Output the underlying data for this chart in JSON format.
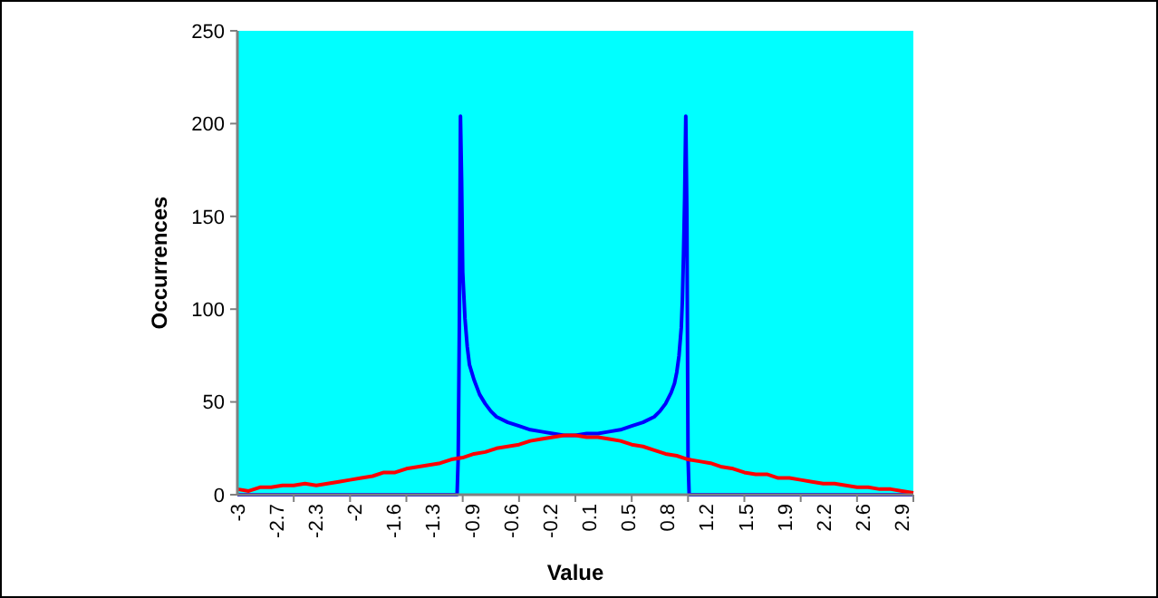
{
  "chart_data": {
    "type": "line",
    "xlabel": "Value",
    "ylabel": "Occurrences",
    "xlim": [
      -3,
      3
    ],
    "ylim": [
      0,
      250
    ],
    "yticks": [
      0,
      50,
      100,
      150,
      200,
      250
    ],
    "xticks": [
      {
        "value": -3,
        "label": "-3"
      },
      {
        "value": -2.653,
        "label": "-2.7"
      },
      {
        "value": -2.306,
        "label": "-2.3"
      },
      {
        "value": -1.959,
        "label": "-2"
      },
      {
        "value": -1.612,
        "label": "-1.6"
      },
      {
        "value": -1.265,
        "label": "-1.3"
      },
      {
        "value": -0.918,
        "label": "-0.9"
      },
      {
        "value": -0.571,
        "label": "-0.6"
      },
      {
        "value": -0.224,
        "label": "-0.2"
      },
      {
        "value": 0.123,
        "label": "0.1"
      },
      {
        "value": 0.47,
        "label": "0.5"
      },
      {
        "value": 0.817,
        "label": "0.8"
      },
      {
        "value": 1.164,
        "label": "1.2"
      },
      {
        "value": 1.511,
        "label": "1.5"
      },
      {
        "value": 1.858,
        "label": "1.9"
      },
      {
        "value": 2.205,
        "label": "2.2"
      },
      {
        "value": 2.552,
        "label": "2.6"
      },
      {
        "value": 2.9,
        "label": "2.9"
      },
      {
        "value": -2.5,
        "label": null
      },
      {
        "value": -2,
        "label": null
      },
      {
        "value": -1.5,
        "label": null
      },
      {
        "value": -1,
        "label": null
      },
      {
        "value": -0.5,
        "label": null
      },
      {
        "value": 0,
        "label": null
      },
      {
        "value": 0.5,
        "label": null
      },
      {
        "value": 1,
        "label": null
      },
      {
        "value": 1.5,
        "label": null
      },
      {
        "value": 2,
        "label": null
      },
      {
        "value": 2.5,
        "label": null
      },
      {
        "value": 3,
        "label": null
      }
    ],
    "grid": false,
    "marker": "none",
    "line_style": "solid",
    "series": [
      {
        "color": "#0000ff",
        "x": [
          -3,
          -1.05,
          -1.04,
          -1.03,
          -1.02,
          -1.01,
          -1.0,
          -0.98,
          -0.96,
          -0.94,
          -0.9,
          -0.85,
          -0.8,
          -0.75,
          -0.7,
          -0.6,
          -0.5,
          -0.4,
          -0.3,
          -0.2,
          -0.1,
          0,
          0.1,
          0.2,
          0.3,
          0.4,
          0.5,
          0.6,
          0.7,
          0.75,
          0.8,
          0.85,
          0.88,
          0.9,
          0.92,
          0.94,
          0.95,
          0.96,
          0.97,
          0.98,
          0.99,
          1.0,
          1.01,
          3
        ],
        "values": [
          0,
          0,
          20,
          90,
          204,
          170,
          120,
          95,
          80,
          70,
          62,
          54,
          49,
          45,
          42,
          39,
          37,
          35,
          34,
          33,
          32,
          32,
          33,
          33,
          34,
          35,
          37,
          39,
          42,
          45,
          49,
          55,
          60,
          66,
          75,
          90,
          105,
          130,
          160,
          204,
          150,
          20,
          0,
          0
        ]
      },
      {
        "color": "#ff0000",
        "x": [
          -3,
          -2.9,
          -2.8,
          -2.7,
          -2.6,
          -2.5,
          -2.4,
          -2.3,
          -2.2,
          -2.1,
          -2,
          -1.9,
          -1.8,
          -1.7,
          -1.6,
          -1.5,
          -1.4,
          -1.3,
          -1.2,
          -1.1,
          -1,
          -0.9,
          -0.8,
          -0.7,
          -0.6,
          -0.5,
          -0.4,
          -0.3,
          -0.2,
          -0.1,
          0,
          0.1,
          0.2,
          0.3,
          0.4,
          0.5,
          0.6,
          0.7,
          0.8,
          0.9,
          1,
          1.1,
          1.2,
          1.3,
          1.4,
          1.5,
          1.6,
          1.7,
          1.8,
          1.9,
          2,
          2.1,
          2.2,
          2.3,
          2.4,
          2.5,
          2.6,
          2.7,
          2.8,
          2.9,
          3
        ],
        "values": [
          3,
          2,
          4,
          4,
          5,
          5,
          6,
          5,
          6,
          7,
          8,
          9,
          10,
          12,
          12,
          14,
          15,
          16,
          17,
          19,
          20,
          22,
          23,
          25,
          26,
          27,
          29,
          30,
          31,
          32,
          32,
          31,
          31,
          30,
          29,
          27,
          26,
          24,
          22,
          21,
          19,
          18,
          17,
          15,
          14,
          12,
          11,
          11,
          9,
          9,
          8,
          7,
          6,
          6,
          5,
          4,
          4,
          3,
          3,
          2,
          1
        ]
      }
    ]
  }
}
